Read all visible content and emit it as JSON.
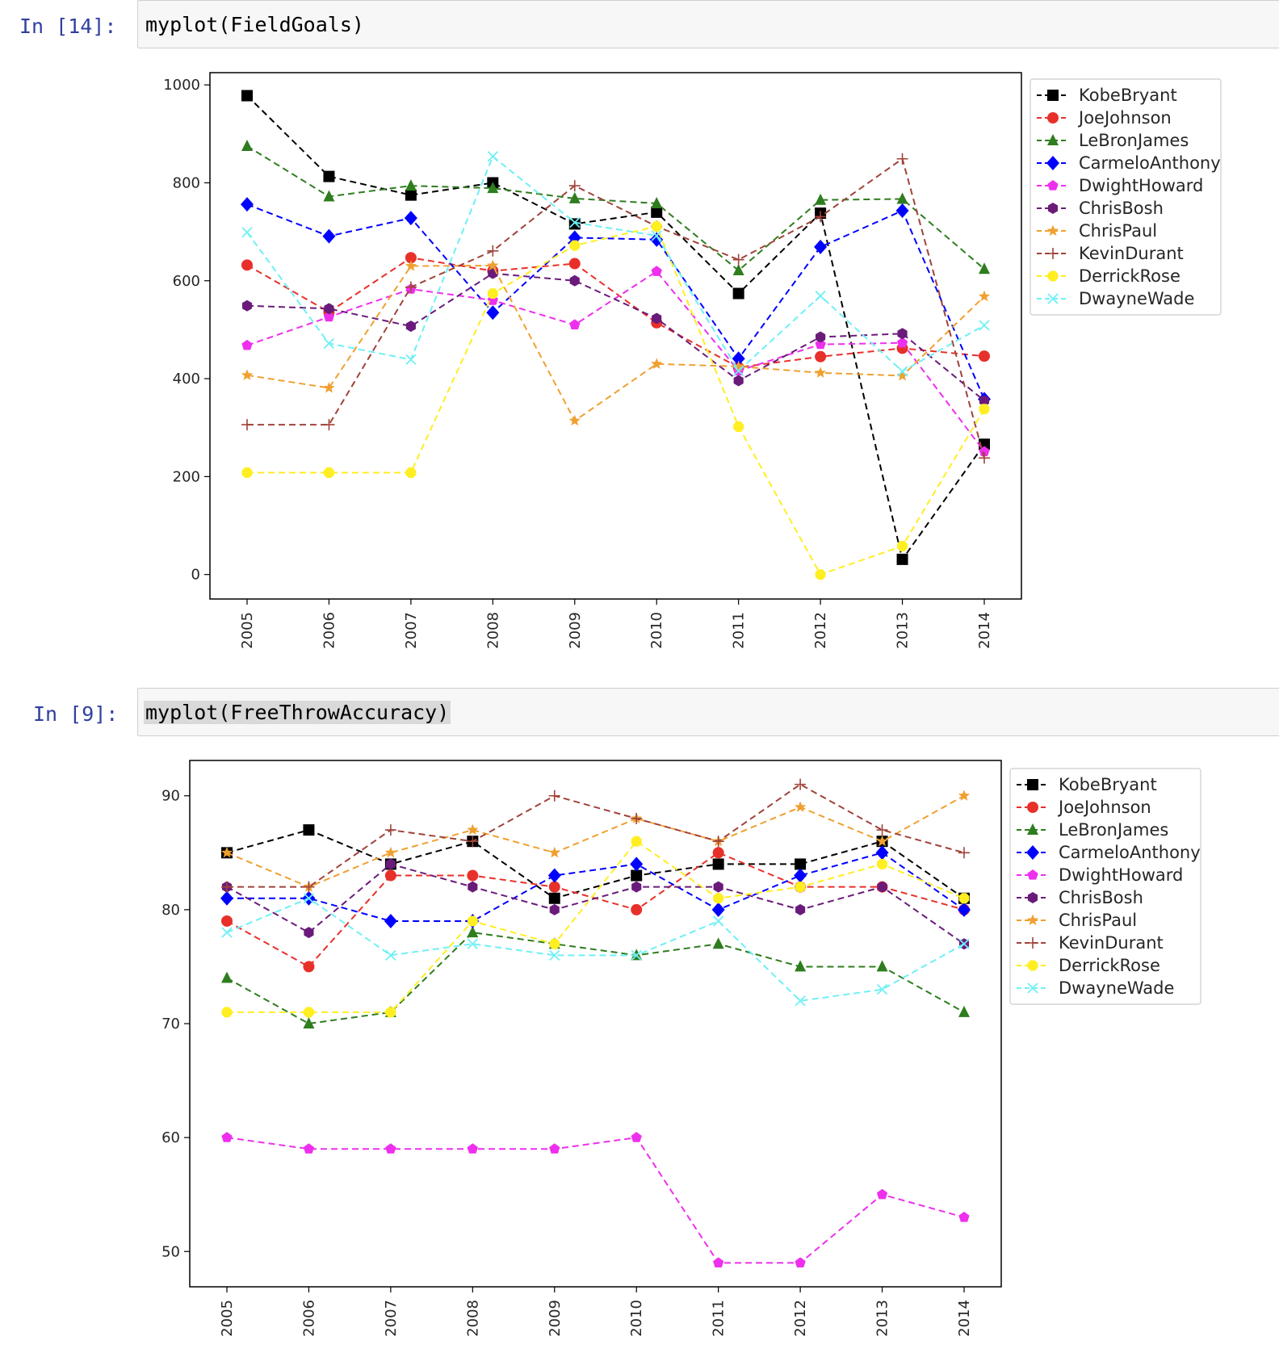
{
  "cells": [
    {
      "prompt": "In [14]:",
      "code": "myplot(FieldGoals)",
      "selected": false
    },
    {
      "prompt": "In [9]:",
      "code": "myplot(FreeThrowAccuracy)",
      "selected": true
    }
  ],
  "legend_styles": [
    {
      "name": "KobeBryant",
      "color": "#000000",
      "marker": "square"
    },
    {
      "name": "JoeJohnson",
      "color": "#e8302a",
      "marker": "circle"
    },
    {
      "name": "LeBronJames",
      "color": "#2e7d1e",
      "marker": "triangle"
    },
    {
      "name": "CarmeloAnthony",
      "color": "#0000ff",
      "marker": "diamond"
    },
    {
      "name": "DwightHoward",
      "color": "#ee2fee",
      "marker": "pentagon"
    },
    {
      "name": "ChrisBosh",
      "color": "#6a1b7a",
      "marker": "hexagon"
    },
    {
      "name": "ChrisPaul",
      "color": "#f0a030",
      "marker": "star"
    },
    {
      "name": "KevinDurant",
      "color": "#a0433a",
      "marker": "plus"
    },
    {
      "name": "DerrickRose",
      "color": "#ffee22",
      "marker": "octagon"
    },
    {
      "name": "DwayneWade",
      "color": "#6ff0f5",
      "marker": "x"
    }
  ],
  "chart_data": [
    {
      "type": "line",
      "title": "",
      "xlabel": "",
      "ylabel": "",
      "ylim": [
        -50,
        1025
      ],
      "yticks": [
        0,
        200,
        400,
        600,
        800,
        1000
      ],
      "x": [
        "2005",
        "2006",
        "2007",
        "2008",
        "2009",
        "2010",
        "2011",
        "2012",
        "2013",
        "2014"
      ],
      "legend_position": "outside-top-right",
      "grid": false,
      "series": [
        {
          "name": "KobeBryant",
          "values": [
            978,
            813,
            775,
            800,
            716,
            740,
            574,
            738,
            31,
            266
          ]
        },
        {
          "name": "JoeJohnson",
          "values": [
            632,
            536,
            647,
            620,
            635,
            514,
            423,
            445,
            462,
            446
          ]
        },
        {
          "name": "LeBronJames",
          "values": [
            875,
            772,
            794,
            789,
            768,
            758,
            621,
            765,
            767,
            624
          ]
        },
        {
          "name": "CarmeloAnthony",
          "values": [
            756,
            691,
            728,
            535,
            688,
            684,
            441,
            669,
            743,
            358
          ]
        },
        {
          "name": "DwightHoward",
          "values": [
            468,
            526,
            583,
            560,
            510,
            619,
            416,
            470,
            473,
            251
          ]
        },
        {
          "name": "ChrisBosh",
          "values": [
            549,
            543,
            507,
            615,
            600,
            523,
            396,
            485,
            492,
            355
          ]
        },
        {
          "name": "ChrisPaul",
          "values": [
            407,
            381,
            630,
            631,
            314,
            430,
            425,
            412,
            406,
            568
          ]
        },
        {
          "name": "KevinDurant",
          "values": [
            306,
            306,
            587,
            661,
            794,
            711,
            643,
            731,
            849,
            238
          ]
        },
        {
          "name": "DerrickRose",
          "values": [
            208,
            208,
            208,
            574,
            672,
            711,
            302,
            0,
            58,
            338
          ]
        },
        {
          "name": "DwayneWade",
          "values": [
            699,
            472,
            439,
            854,
            719,
            692,
            416,
            569,
            415,
            509
          ]
        }
      ]
    },
    {
      "type": "line",
      "title": "",
      "xlabel": "",
      "ylabel": "",
      "ylim": [
        46.9,
        93.1
      ],
      "yticks": [
        50,
        60,
        70,
        80,
        90
      ],
      "x": [
        "2005",
        "2006",
        "2007",
        "2008",
        "2009",
        "2010",
        "2011",
        "2012",
        "2013",
        "2014"
      ],
      "legend_position": "outside-top-right",
      "grid": false,
      "series": [
        {
          "name": "KobeBryant",
          "values": [
            85,
            87,
            84,
            86,
            81,
            83,
            84,
            84,
            86,
            81
          ]
        },
        {
          "name": "JoeJohnson",
          "values": [
            79,
            75,
            83,
            83,
            82,
            80,
            85,
            82,
            82,
            80
          ]
        },
        {
          "name": "LeBronJames",
          "values": [
            74,
            70,
            71,
            78,
            77,
            76,
            77,
            75,
            75,
            71
          ]
        },
        {
          "name": "CarmeloAnthony",
          "values": [
            81,
            81,
            79,
            79,
            83,
            84,
            80,
            83,
            85,
            80
          ]
        },
        {
          "name": "DwightHoward",
          "values": [
            60,
            59,
            59,
            59,
            59,
            60,
            49,
            49,
            55,
            53
          ]
        },
        {
          "name": "ChrisBosh",
          "values": [
            82,
            78,
            84,
            82,
            80,
            82,
            82,
            80,
            82,
            77
          ]
        },
        {
          "name": "ChrisPaul",
          "values": [
            85,
            82,
            85,
            87,
            85,
            88,
            86,
            89,
            86,
            90
          ]
        },
        {
          "name": "KevinDurant",
          "values": [
            82,
            82,
            87,
            86,
            90,
            88,
            86,
            91,
            87,
            85
          ]
        },
        {
          "name": "DerrickRose",
          "values": [
            71,
            71,
            71,
            79,
            77,
            86,
            81,
            82,
            84,
            81
          ]
        },
        {
          "name": "DwayneWade",
          "values": [
            78,
            81,
            76,
            77,
            76,
            76,
            79,
            72,
            73,
            77
          ]
        }
      ]
    }
  ]
}
